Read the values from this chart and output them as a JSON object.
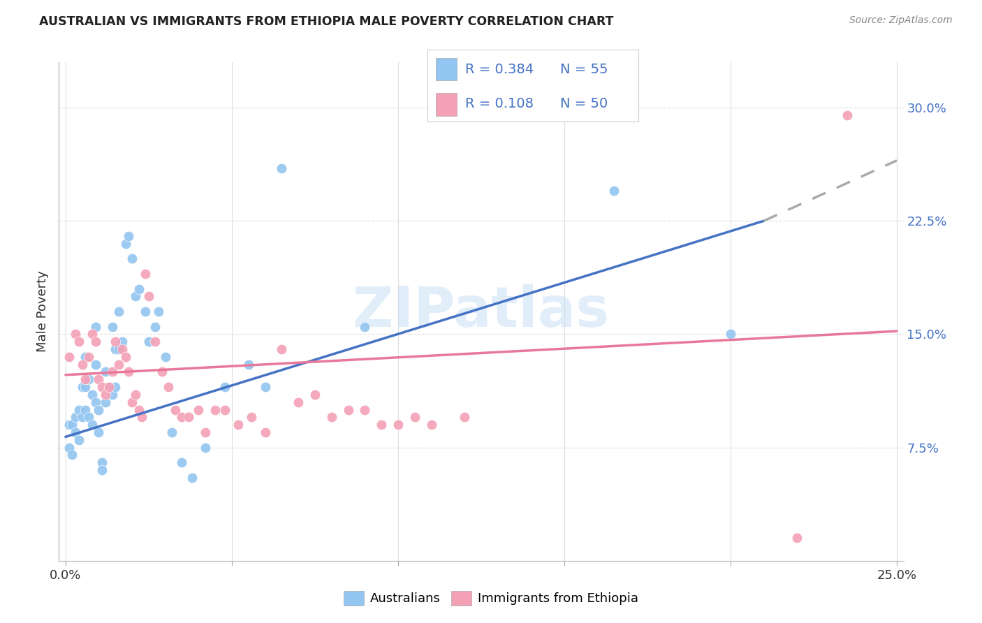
{
  "title": "AUSTRALIAN VS IMMIGRANTS FROM ETHIOPIA MALE POVERTY CORRELATION CHART",
  "source": "Source: ZipAtlas.com",
  "ylabel": "Male Poverty",
  "ytick_labels": [
    "7.5%",
    "15.0%",
    "22.5%",
    "30.0%"
  ],
  "ytick_values": [
    0.075,
    0.15,
    0.225,
    0.3
  ],
  "xtick_values": [
    0.0,
    0.05,
    0.1,
    0.15,
    0.2,
    0.25
  ],
  "xtick_labels": [
    "0.0%",
    "",
    "",
    "",
    "",
    "25.0%"
  ],
  "xlim": [
    -0.002,
    0.252
  ],
  "ylim": [
    0.0,
    0.33
  ],
  "legend_r_aus": "0.384",
  "legend_n_aus": "55",
  "legend_r_eth": "0.108",
  "legend_n_eth": "50",
  "color_australian": "#92C5F0",
  "color_ethiopia": "#F4A0B5",
  "color_line_australian": "#4472C4",
  "color_line_ethiopia": "#E8789A",
  "color_ticks_y": "#4472C4",
  "color_grid": "#DDDDDD",
  "watermark_text": "ZIPatlas",
  "watermark_color": "#C5DCF5",
  "australians_x": [
    0.001,
    0.001,
    0.002,
    0.002,
    0.003,
    0.003,
    0.004,
    0.004,
    0.005,
    0.005,
    0.006,
    0.006,
    0.006,
    0.007,
    0.007,
    0.008,
    0.008,
    0.009,
    0.009,
    0.009,
    0.01,
    0.01,
    0.011,
    0.011,
    0.012,
    0.012,
    0.013,
    0.014,
    0.014,
    0.015,
    0.015,
    0.016,
    0.016,
    0.017,
    0.018,
    0.019,
    0.02,
    0.021,
    0.022,
    0.024,
    0.025,
    0.027,
    0.028,
    0.03,
    0.032,
    0.035,
    0.038,
    0.042,
    0.048,
    0.055,
    0.06,
    0.065,
    0.09,
    0.165,
    0.2
  ],
  "australians_y": [
    0.09,
    0.075,
    0.09,
    0.07,
    0.085,
    0.095,
    0.1,
    0.08,
    0.095,
    0.115,
    0.1,
    0.115,
    0.135,
    0.095,
    0.12,
    0.09,
    0.11,
    0.105,
    0.13,
    0.155,
    0.1,
    0.085,
    0.065,
    0.06,
    0.105,
    0.125,
    0.115,
    0.11,
    0.155,
    0.115,
    0.14,
    0.14,
    0.165,
    0.145,
    0.21,
    0.215,
    0.2,
    0.175,
    0.18,
    0.165,
    0.145,
    0.155,
    0.165,
    0.135,
    0.085,
    0.065,
    0.055,
    0.075,
    0.115,
    0.13,
    0.115,
    0.26,
    0.155,
    0.245,
    0.15
  ],
  "ethiopia_x": [
    0.001,
    0.003,
    0.004,
    0.005,
    0.006,
    0.007,
    0.008,
    0.009,
    0.01,
    0.011,
    0.012,
    0.013,
    0.014,
    0.015,
    0.016,
    0.017,
    0.018,
    0.019,
    0.02,
    0.021,
    0.022,
    0.023,
    0.024,
    0.025,
    0.027,
    0.029,
    0.031,
    0.033,
    0.035,
    0.037,
    0.04,
    0.042,
    0.045,
    0.048,
    0.052,
    0.056,
    0.06,
    0.065,
    0.07,
    0.075,
    0.08,
    0.085,
    0.09,
    0.095,
    0.1,
    0.105,
    0.11,
    0.12,
    0.22,
    0.235
  ],
  "ethiopia_y": [
    0.135,
    0.15,
    0.145,
    0.13,
    0.12,
    0.135,
    0.15,
    0.145,
    0.12,
    0.115,
    0.11,
    0.115,
    0.125,
    0.145,
    0.13,
    0.14,
    0.135,
    0.125,
    0.105,
    0.11,
    0.1,
    0.095,
    0.19,
    0.175,
    0.145,
    0.125,
    0.115,
    0.1,
    0.095,
    0.095,
    0.1,
    0.085,
    0.1,
    0.1,
    0.09,
    0.095,
    0.085,
    0.14,
    0.105,
    0.11,
    0.095,
    0.1,
    0.1,
    0.09,
    0.09,
    0.095,
    0.09,
    0.095,
    0.015,
    0.295
  ],
  "line_aus_x0": 0.0,
  "line_aus_y0": 0.082,
  "line_aus_x1": 0.21,
  "line_aus_y1": 0.225,
  "line_aus_dash_x1": 0.25,
  "line_aus_dash_y1": 0.265,
  "line_eth_x0": 0.0,
  "line_eth_y0": 0.123,
  "line_eth_x1": 0.25,
  "line_eth_y1": 0.152
}
